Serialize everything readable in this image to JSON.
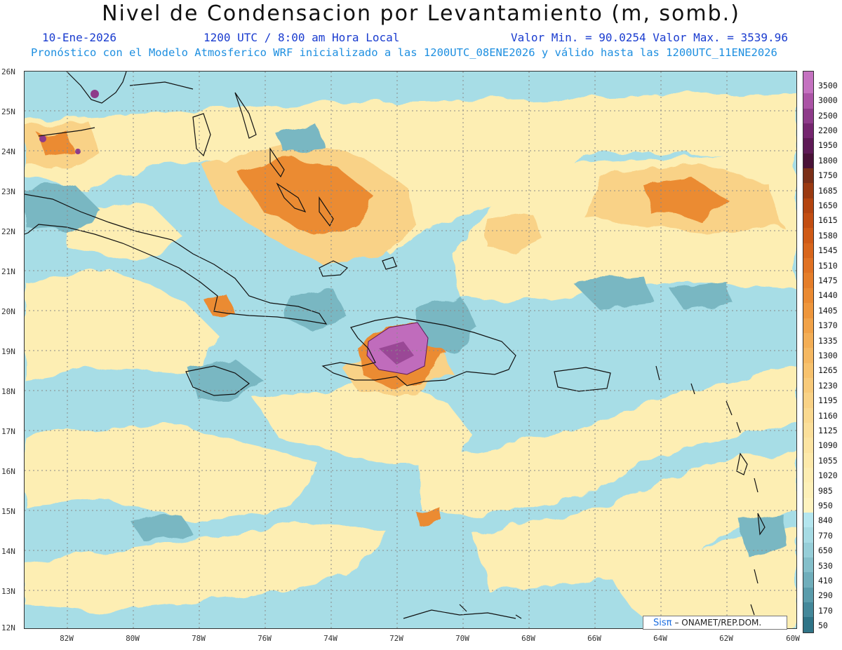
{
  "title": "Nivel de Condensacion por Levantamiento (m, somb.)",
  "date": "10-Ene-2026",
  "time": "1200 UTC / 8:00 am Hora Local",
  "min_max": "Valor Min. = 90.0254  Valor Max. = 3539.96",
  "model_info": "Pronóstico con el Modelo Atmosferico WRF inicializado a las 1200UTC_08ENE2026 y válido hasta las  1200UTC_11ENE2026",
  "credit": {
    "brand": "Sisπ",
    "text": "– ONAMET/REP.DOM."
  },
  "map": {
    "lat_labels": [
      "26N",
      "25N",
      "24N",
      "23N",
      "22N",
      "21N",
      "20N",
      "19N",
      "18N",
      "17N",
      "16N",
      "15N",
      "14N",
      "13N",
      "12N"
    ],
    "lon_labels": [
      "82W",
      "80W",
      "78W",
      "76W",
      "74W",
      "72W",
      "70W",
      "68W",
      "66W",
      "64W",
      "62W",
      "60W"
    ],
    "lat_range": [
      12,
      26
    ],
    "lon_range": [
      -83.2,
      -59.8
    ]
  },
  "colorbar": {
    "labels": [
      "3500",
      "3000",
      "2500",
      "2200",
      "1950",
      "1800",
      "1750",
      "1685",
      "1650",
      "1615",
      "1580",
      "1545",
      "1510",
      "1475",
      "1440",
      "1405",
      "1370",
      "1335",
      "1300",
      "1265",
      "1230",
      "1195",
      "1160",
      "1125",
      "1090",
      "1055",
      "1020",
      "985",
      "950",
      "840",
      "770",
      "650",
      "530",
      "410",
      "290",
      "170",
      "50"
    ],
    "colors": [
      "#c472c0",
      "#ab54a6",
      "#8e3b8a",
      "#75266f",
      "#5e1a56",
      "#4a1238",
      "#7a2f18",
      "#9a3a12",
      "#b34410",
      "#c24e12",
      "#cf5a16",
      "#d8661c",
      "#e07224",
      "#e57e2a",
      "#ea8a32",
      "#ee963c",
      "#f1a248",
      "#f3ae56",
      "#f5b862",
      "#f7c26e",
      "#f8ca7a",
      "#f9d286",
      "#fad990",
      "#fbdf9a",
      "#fce4a2",
      "#fde9aa",
      "#fdedb2",
      "#fdf0b8",
      "#fef3bf",
      "#b4e6ef",
      "#a6dbe4",
      "#96ced8",
      "#84bfca",
      "#70aebb",
      "#5a9cab",
      "#44889a",
      "#2f7487"
    ]
  }
}
